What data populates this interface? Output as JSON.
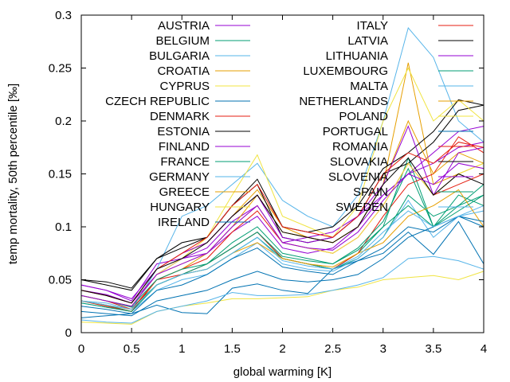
{
  "chart_data": {
    "type": "line",
    "xlabel": "global warming [K]",
    "ylabel": "temp mortality, 50th percentile [‰]",
    "xlim": [
      0,
      4
    ],
    "ylim": [
      0,
      0.3
    ],
    "x_ticks": [
      "0",
      "0.5",
      "1",
      "1.5",
      "2",
      "2.5",
      "3",
      "3.5",
      "4"
    ],
    "y_ticks": [
      "0",
      "0.05",
      "0.1",
      "0.15",
      "0.2",
      "0.25",
      "0.3"
    ],
    "grid": false,
    "legend_placement": "top, two columns",
    "x": [
      0,
      0.25,
      0.5,
      0.75,
      1,
      1.25,
      1.5,
      1.75,
      2,
      2.25,
      2.5,
      2.75,
      3,
      3.25,
      3.5,
      3.75,
      4
    ],
    "series": [
      {
        "name": "AUSTRIA",
        "color": "#9400d3",
        "values": [
          0.045,
          0.04,
          0.03,
          0.065,
          0.07,
          0.08,
          0.105,
          0.12,
          0.085,
          0.09,
          0.095,
          0.11,
          0.13,
          0.15,
          0.17,
          0.19,
          0.195
        ]
      },
      {
        "name": "BELGIUM",
        "color": "#009e73",
        "values": [
          0.035,
          0.03,
          0.024,
          0.045,
          0.055,
          0.065,
          0.08,
          0.095,
          0.07,
          0.065,
          0.06,
          0.075,
          0.1,
          0.165,
          0.1,
          0.12,
          0.14
        ]
      },
      {
        "name": "BULGARIA",
        "color": "#56b4e9",
        "values": [
          0.03,
          0.028,
          0.022,
          0.06,
          0.11,
          0.12,
          0.14,
          0.16,
          0.125,
          0.11,
          0.1,
          0.13,
          0.2,
          0.288,
          0.26,
          0.2,
          0.18
        ]
      },
      {
        "name": "CROATIA",
        "color": "#e69f00",
        "values": [
          0.04,
          0.035,
          0.028,
          0.06,
          0.075,
          0.085,
          0.11,
          0.135,
          0.1,
          0.09,
          0.085,
          0.1,
          0.14,
          0.255,
          0.14,
          0.15,
          0.16
        ]
      },
      {
        "name": "CYPRUS",
        "color": "#f0e442",
        "values": [
          0.01,
          0.009,
          0.008,
          0.02,
          0.025,
          0.028,
          0.032,
          0.032,
          0.033,
          0.034,
          0.04,
          0.043,
          0.05,
          0.052,
          0.054,
          0.05,
          0.058
        ]
      },
      {
        "name": "CZECH REPUBLIC",
        "color": "#0072b2",
        "values": [
          0.014,
          0.016,
          0.018,
          0.026,
          0.019,
          0.018,
          0.042,
          0.046,
          0.04,
          0.037,
          0.06,
          0.068,
          0.075,
          0.095,
          0.074,
          0.105,
          0.065
        ]
      },
      {
        "name": "DENMARK",
        "color": "#e51e10",
        "values": [
          0.035,
          0.03,
          0.022,
          0.05,
          0.055,
          0.065,
          0.08,
          0.095,
          0.07,
          0.065,
          0.06,
          0.075,
          0.11,
          0.14,
          0.15,
          0.185,
          0.17
        ]
      },
      {
        "name": "ESTONIA",
        "color": "#000000",
        "values": [
          0.05,
          0.048,
          0.042,
          0.07,
          0.085,
          0.09,
          0.12,
          0.14,
          0.09,
          0.085,
          0.09,
          0.11,
          0.15,
          0.16,
          0.18,
          0.21,
          0.215
        ]
      },
      {
        "name": "FINLAND",
        "color": "#9400d3",
        "values": [
          0.04,
          0.036,
          0.028,
          0.055,
          0.07,
          0.075,
          0.095,
          0.11,
          0.08,
          0.075,
          0.08,
          0.1,
          0.13,
          0.15,
          0.16,
          0.175,
          0.18
        ]
      },
      {
        "name": "FRANCE",
        "color": "#009e73",
        "values": [
          0.03,
          0.026,
          0.02,
          0.045,
          0.055,
          0.06,
          0.075,
          0.09,
          0.07,
          0.065,
          0.06,
          0.07,
          0.09,
          0.13,
          0.11,
          0.12,
          0.13
        ]
      },
      {
        "name": "GERMANY",
        "color": "#56b4e9",
        "values": [
          0.028,
          0.024,
          0.02,
          0.04,
          0.05,
          0.055,
          0.07,
          0.085,
          0.065,
          0.06,
          0.058,
          0.07,
          0.09,
          0.125,
          0.09,
          0.11,
          0.12
        ]
      },
      {
        "name": "GREECE",
        "color": "#e69f00",
        "values": [
          0.03,
          0.025,
          0.02,
          0.05,
          0.06,
          0.075,
          0.1,
          0.13,
          0.095,
          0.09,
          0.085,
          0.1,
          0.14,
          0.2,
          0.15,
          0.17,
          0.16
        ]
      },
      {
        "name": "HUNGARY",
        "color": "#f0e442",
        "values": [
          0.035,
          0.03,
          0.025,
          0.055,
          0.07,
          0.09,
          0.13,
          0.168,
          0.11,
          0.1,
          0.09,
          0.12,
          0.2,
          0.25,
          0.2,
          0.22,
          0.2
        ]
      },
      {
        "name": "IRELAND",
        "color": "#0072b2",
        "values": [
          0.02,
          0.018,
          0.016,
          0.03,
          0.035,
          0.04,
          0.05,
          0.058,
          0.05,
          0.048,
          0.05,
          0.055,
          0.07,
          0.09,
          0.1,
          0.11,
          0.1
        ]
      },
      {
        "name": "ITALY",
        "color": "#e51e10",
        "values": [
          0.03,
          0.025,
          0.02,
          0.05,
          0.06,
          0.07,
          0.095,
          0.115,
          0.085,
          0.08,
          0.075,
          0.09,
          0.12,
          0.16,
          0.13,
          0.14,
          0.15
        ]
      },
      {
        "name": "LATVIA",
        "color": "#000000",
        "values": [
          0.05,
          0.045,
          0.04,
          0.07,
          0.08,
          0.09,
          0.12,
          0.145,
          0.1,
          0.095,
          0.1,
          0.12,
          0.155,
          0.17,
          0.19,
          0.22,
          0.215
        ]
      },
      {
        "name": "LITHUANIA",
        "color": "#9400d3",
        "values": [
          0.045,
          0.04,
          0.032,
          0.06,
          0.075,
          0.085,
          0.11,
          0.13,
          0.09,
          0.085,
          0.09,
          0.11,
          0.14,
          0.195,
          0.13,
          0.17,
          0.175
        ]
      },
      {
        "name": "LUXEMBOURG",
        "color": "#009e73",
        "values": [
          0.035,
          0.03,
          0.025,
          0.05,
          0.06,
          0.065,
          0.085,
          0.1,
          0.075,
          0.07,
          0.065,
          0.08,
          0.105,
          0.155,
          0.1,
          0.13,
          0.12
        ]
      },
      {
        "name": "MALTA",
        "color": "#56b4e9",
        "values": [
          0.012,
          0.01,
          0.009,
          0.02,
          0.025,
          0.03,
          0.038,
          0.035,
          0.035,
          0.036,
          0.04,
          0.045,
          0.052,
          0.07,
          0.072,
          0.068,
          0.06
        ]
      },
      {
        "name": "NETHERLANDS",
        "color": "#e69f00",
        "values": [
          0.03,
          0.026,
          0.022,
          0.045,
          0.055,
          0.06,
          0.075,
          0.085,
          0.07,
          0.065,
          0.062,
          0.075,
          0.085,
          0.11,
          0.12,
          0.135,
          0.1
        ]
      },
      {
        "name": "POLAND",
        "color": "#f0e442",
        "values": [
          0.035,
          0.03,
          0.025,
          0.055,
          0.065,
          0.075,
          0.1,
          0.12,
          0.085,
          0.08,
          0.075,
          0.09,
          0.12,
          0.16,
          0.13,
          0.15,
          0.16
        ]
      },
      {
        "name": "PORTUGAL",
        "color": "#0072b2",
        "values": [
          0.025,
          0.022,
          0.018,
          0.04,
          0.045,
          0.055,
          0.07,
          0.08,
          0.062,
          0.058,
          0.055,
          0.068,
          0.08,
          0.1,
          0.095,
          0.11,
          0.105
        ]
      },
      {
        "name": "ROMANIA",
        "color": "#e51e10",
        "values": [
          0.04,
          0.035,
          0.028,
          0.06,
          0.075,
          0.09,
          0.12,
          0.14,
          0.1,
          0.095,
          0.09,
          0.11,
          0.15,
          0.17,
          0.16,
          0.18,
          0.175
        ]
      },
      {
        "name": "SLOVAKIA",
        "color": "#000000",
        "values": [
          0.04,
          0.035,
          0.028,
          0.06,
          0.07,
          0.085,
          0.11,
          0.13,
          0.095,
          0.09,
          0.085,
          0.1,
          0.14,
          0.165,
          0.13,
          0.15,
          0.14
        ]
      },
      {
        "name": "SLOVENIA",
        "color": "#9400d3",
        "values": [
          0.035,
          0.03,
          0.025,
          0.055,
          0.065,
          0.075,
          0.1,
          0.12,
          0.085,
          0.08,
          0.078,
          0.095,
          0.125,
          0.15,
          0.14,
          0.16,
          0.155
        ]
      },
      {
        "name": "SPAIN",
        "color": "#009e73",
        "values": [
          0.028,
          0.024,
          0.02,
          0.045,
          0.055,
          0.065,
          0.08,
          0.095,
          0.072,
          0.068,
          0.065,
          0.078,
          0.1,
          0.12,
          0.1,
          0.115,
          0.13
        ]
      },
      {
        "name": "SWEDEN",
        "color": "#56b4e9",
        "values": [
          0.03,
          0.026,
          0.022,
          0.045,
          0.055,
          0.06,
          0.075,
          0.09,
          0.068,
          0.063,
          0.06,
          0.072,
          0.095,
          0.115,
          0.1,
          0.11,
          0.115
        ]
      }
    ]
  }
}
